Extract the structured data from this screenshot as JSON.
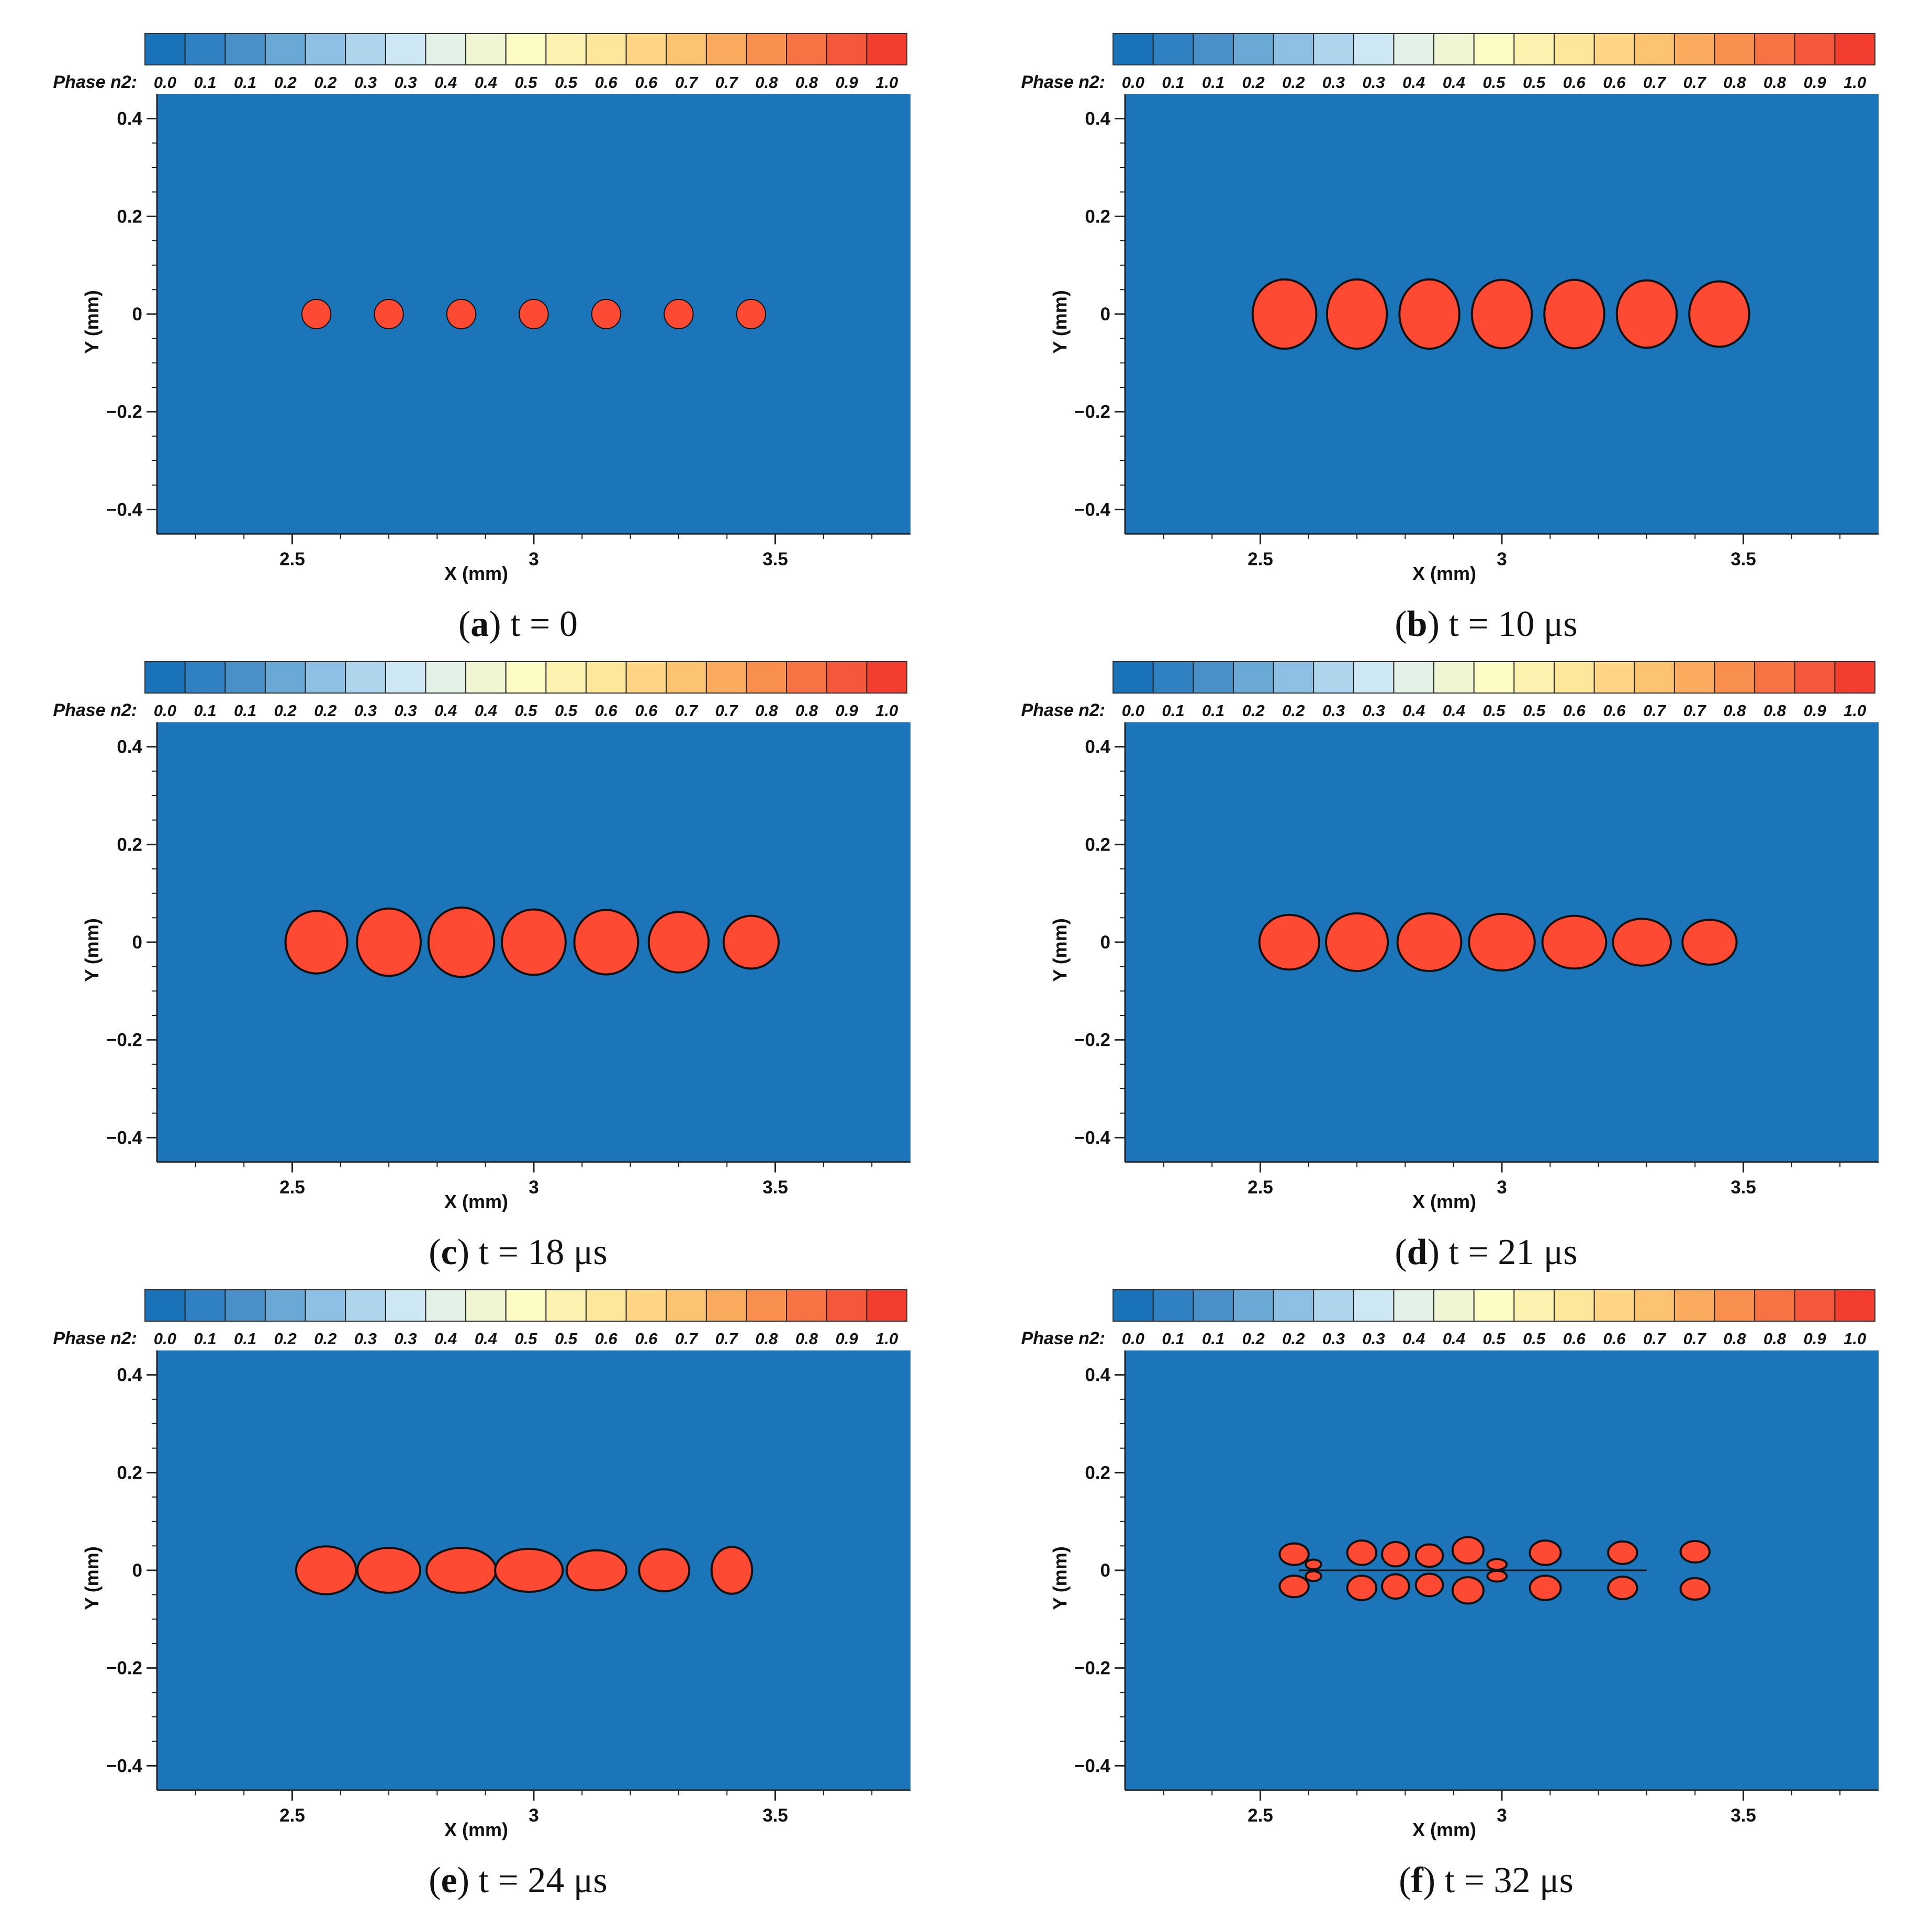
{
  "colors": {
    "background": "#1b75b8",
    "droplet": "#ff4a33",
    "outline": "#111111"
  },
  "colorbar": {
    "title": "Phase n2:",
    "ticks": [
      "0.0",
      "0.1",
      "0.1",
      "0.2",
      "0.2",
      "0.3",
      "0.3",
      "0.4",
      "0.4",
      "0.5",
      "0.5",
      "0.6",
      "0.6",
      "0.7",
      "0.7",
      "0.8",
      "0.8",
      "0.9",
      "1.0"
    ],
    "colors": [
      "#1a72b8",
      "#2f81c1",
      "#4a90c8",
      "#6aa8d6",
      "#8ec0e3",
      "#add6ec",
      "#cde8f2",
      "#e3f2e6",
      "#f0f6d2",
      "#fcfcc4",
      "#fdf3b0",
      "#fde79b",
      "#fdd585",
      "#fcc370",
      "#fbab5e",
      "#f98f4f",
      "#f77344",
      "#f5573a",
      "#f33d2f"
    ]
  },
  "chart_data": [
    {
      "id": "a",
      "type": "scatter",
      "title": "",
      "caption_letter": "a",
      "caption_text": "t = 0",
      "xlabel": "X (mm)",
      "ylabel": "Y (mm)",
      "xlim": [
        2.22,
        3.78
      ],
      "ylim": [
        -0.45,
        0.45
      ],
      "xticks": [
        2.5,
        3,
        3.5
      ],
      "xtick_labels": [
        "2.5",
        "3",
        "3.5"
      ],
      "yticks": [
        0.4,
        0.2,
        0,
        -0.2,
        -0.4
      ],
      "ytick_labels": [
        "0.4",
        "0.2",
        "0",
        "−0.2",
        "−0.4"
      ],
      "droplets": [
        {
          "x": 2.55,
          "y": 0,
          "rx": 0.03,
          "ry": 0.03
        },
        {
          "x": 2.7,
          "y": 0,
          "rx": 0.03,
          "ry": 0.03
        },
        {
          "x": 2.85,
          "y": 0,
          "rx": 0.03,
          "ry": 0.03
        },
        {
          "x": 3.0,
          "y": 0,
          "rx": 0.03,
          "ry": 0.03
        },
        {
          "x": 3.15,
          "y": 0,
          "rx": 0.03,
          "ry": 0.03
        },
        {
          "x": 3.3,
          "y": 0,
          "rx": 0.03,
          "ry": 0.03
        },
        {
          "x": 3.45,
          "y": 0,
          "rx": 0.03,
          "ry": 0.03
        }
      ]
    },
    {
      "id": "b",
      "type": "scatter",
      "caption_letter": "b",
      "caption_text": "t = 10 μs",
      "xlabel": "X (mm)",
      "ylabel": "Y (mm)",
      "xlim": [
        2.22,
        3.78
      ],
      "ylim": [
        -0.45,
        0.45
      ],
      "xticks": [
        2.5,
        3,
        3.5
      ],
      "xtick_labels": [
        "2.5",
        "3",
        "3.5"
      ],
      "yticks": [
        0.4,
        0.2,
        0,
        -0.2,
        -0.4
      ],
      "ytick_labels": [
        "0.4",
        "0.2",
        "0",
        "−0.2",
        "−0.4"
      ],
      "droplets": [
        {
          "x": 2.55,
          "y": 0,
          "rx": 0.066,
          "ry": 0.071
        },
        {
          "x": 2.7,
          "y": 0,
          "rx": 0.062,
          "ry": 0.071
        },
        {
          "x": 2.85,
          "y": 0,
          "rx": 0.062,
          "ry": 0.071
        },
        {
          "x": 3.0,
          "y": 0,
          "rx": 0.062,
          "ry": 0.07
        },
        {
          "x": 3.15,
          "y": 0,
          "rx": 0.062,
          "ry": 0.07
        },
        {
          "x": 3.3,
          "y": 0,
          "rx": 0.062,
          "ry": 0.069
        },
        {
          "x": 3.45,
          "y": 0,
          "rx": 0.062,
          "ry": 0.067
        }
      ]
    },
    {
      "id": "c",
      "type": "scatter",
      "caption_letter": "c",
      "caption_text": "t = 18 μs",
      "xlabel": "X (mm)",
      "ylabel": "Y (mm)",
      "xlim": [
        2.22,
        3.78
      ],
      "ylim": [
        -0.45,
        0.45
      ],
      "xticks": [
        2.5,
        3,
        3.5
      ],
      "xtick_labels": [
        "2.5",
        "3",
        "3.5"
      ],
      "yticks": [
        0.4,
        0.2,
        0,
        -0.2,
        -0.4
      ],
      "ytick_labels": [
        "0.4",
        "0.2",
        "0",
        "−0.2",
        "−0.4"
      ],
      "droplets": [
        {
          "x": 2.55,
          "y": 0,
          "rx": 0.064,
          "ry": 0.064
        },
        {
          "x": 2.7,
          "y": 0,
          "rx": 0.066,
          "ry": 0.069
        },
        {
          "x": 2.85,
          "y": 0,
          "rx": 0.068,
          "ry": 0.071
        },
        {
          "x": 3.0,
          "y": 0,
          "rx": 0.066,
          "ry": 0.067
        },
        {
          "x": 3.15,
          "y": 0,
          "rx": 0.066,
          "ry": 0.066
        },
        {
          "x": 3.3,
          "y": 0,
          "rx": 0.062,
          "ry": 0.062
        },
        {
          "x": 3.45,
          "y": 0,
          "rx": 0.057,
          "ry": 0.054
        }
      ]
    },
    {
      "id": "d",
      "type": "scatter",
      "caption_letter": "d",
      "caption_text": "t = 21 μs",
      "xlabel": "X (mm)",
      "ylabel": "Y (mm)",
      "xlim": [
        2.22,
        3.78
      ],
      "ylim": [
        -0.45,
        0.45
      ],
      "xticks": [
        2.5,
        3,
        3.5
      ],
      "xtick_labels": [
        "2.5",
        "3",
        "3.5"
      ],
      "yticks": [
        0.4,
        0.2,
        0,
        -0.2,
        -0.4
      ],
      "ytick_labels": [
        "0.4",
        "0.2",
        "0",
        "−0.2",
        "−0.4"
      ],
      "droplets": [
        {
          "x": 2.56,
          "y": 0,
          "rx": 0.062,
          "ry": 0.056
        },
        {
          "x": 2.7,
          "y": 0,
          "rx": 0.064,
          "ry": 0.059
        },
        {
          "x": 2.85,
          "y": 0,
          "rx": 0.066,
          "ry": 0.059
        },
        {
          "x": 3.0,
          "y": 0,
          "rx": 0.068,
          "ry": 0.058
        },
        {
          "x": 3.15,
          "y": 0,
          "rx": 0.066,
          "ry": 0.054
        },
        {
          "x": 3.29,
          "y": 0,
          "rx": 0.06,
          "ry": 0.048
        },
        {
          "x": 3.43,
          "y": 0,
          "rx": 0.056,
          "ry": 0.046
        }
      ]
    },
    {
      "id": "e",
      "type": "scatter",
      "caption_letter": "e",
      "caption_text": "t = 24 μs",
      "xlabel": "X (mm)",
      "ylabel": "Y (mm)",
      "xlim": [
        2.22,
        3.78
      ],
      "ylim": [
        -0.45,
        0.45
      ],
      "xticks": [
        2.5,
        3,
        3.5
      ],
      "xtick_labels": [
        "2.5",
        "3",
        "3.5"
      ],
      "yticks": [
        0.4,
        0.2,
        0,
        -0.2,
        -0.4
      ],
      "ytick_labels": [
        "0.4",
        "0.2",
        "0",
        "−0.2",
        "−0.4"
      ],
      "droplets": [
        {
          "x": 2.57,
          "y": 0,
          "rx": 0.062,
          "ry": 0.049
        },
        {
          "x": 2.7,
          "y": 0,
          "rx": 0.065,
          "ry": 0.046
        },
        {
          "x": 2.85,
          "y": 0,
          "rx": 0.072,
          "ry": 0.046
        },
        {
          "x": 2.99,
          "y": 0,
          "rx": 0.07,
          "ry": 0.044
        },
        {
          "x": 3.13,
          "y": 0,
          "rx": 0.062,
          "ry": 0.041
        },
        {
          "x": 3.27,
          "y": 0,
          "rx": 0.052,
          "ry": 0.043
        },
        {
          "x": 3.41,
          "y": 0,
          "rx": 0.042,
          "ry": 0.048
        }
      ]
    },
    {
      "id": "f",
      "type": "scatter",
      "caption_letter": "f",
      "caption_text": "t = 32 μs",
      "xlabel": "X (mm)",
      "ylabel": "Y (mm)",
      "xlim": [
        2.22,
        3.78
      ],
      "ylim": [
        -0.45,
        0.45
      ],
      "xticks": [
        2.5,
        3,
        3.5
      ],
      "xtick_labels": [
        "2.5",
        "3",
        "3.5"
      ],
      "yticks": [
        0.4,
        0.2,
        0,
        -0.2,
        -0.4
      ],
      "ytick_labels": [
        "0.4",
        "0.2",
        "0",
        "−0.2",
        "−0.4"
      ],
      "droplets": [
        {
          "x": 2.57,
          "y": 0.033,
          "rx": 0.03,
          "ry": 0.022
        },
        {
          "x": 2.57,
          "y": -0.033,
          "rx": 0.03,
          "ry": 0.022
        },
        {
          "x": 2.61,
          "y": 0.012,
          "rx": 0.016,
          "ry": 0.01
        },
        {
          "x": 2.61,
          "y": -0.012,
          "rx": 0.016,
          "ry": 0.01
        },
        {
          "x": 2.71,
          "y": 0.036,
          "rx": 0.03,
          "ry": 0.025
        },
        {
          "x": 2.71,
          "y": -0.036,
          "rx": 0.03,
          "ry": 0.025
        },
        {
          "x": 2.78,
          "y": 0.033,
          "rx": 0.028,
          "ry": 0.025
        },
        {
          "x": 2.78,
          "y": -0.033,
          "rx": 0.028,
          "ry": 0.025
        },
        {
          "x": 2.85,
          "y": 0.03,
          "rx": 0.028,
          "ry": 0.023
        },
        {
          "x": 2.85,
          "y": -0.03,
          "rx": 0.028,
          "ry": 0.023
        },
        {
          "x": 2.93,
          "y": 0.041,
          "rx": 0.032,
          "ry": 0.027
        },
        {
          "x": 2.93,
          "y": -0.041,
          "rx": 0.032,
          "ry": 0.027
        },
        {
          "x": 2.99,
          "y": 0.012,
          "rx": 0.02,
          "ry": 0.011
        },
        {
          "x": 2.99,
          "y": -0.012,
          "rx": 0.02,
          "ry": 0.011
        },
        {
          "x": 3.09,
          "y": 0.036,
          "rx": 0.032,
          "ry": 0.025
        },
        {
          "x": 3.09,
          "y": -0.036,
          "rx": 0.032,
          "ry": 0.025
        },
        {
          "x": 3.25,
          "y": 0.036,
          "rx": 0.03,
          "ry": 0.023
        },
        {
          "x": 3.25,
          "y": -0.036,
          "rx": 0.03,
          "ry": 0.023
        },
        {
          "x": 3.4,
          "y": 0.038,
          "rx": 0.03,
          "ry": 0.022
        },
        {
          "x": 3.4,
          "y": -0.038,
          "rx": 0.03,
          "ry": 0.022
        }
      ]
    }
  ]
}
